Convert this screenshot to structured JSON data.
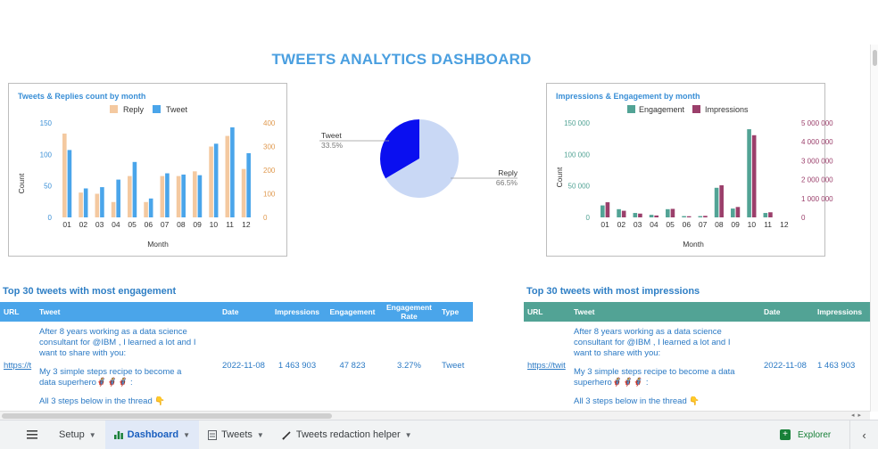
{
  "dashboard": {
    "title": "TWEETS ANALYTICS DASHBOARD"
  },
  "charts": {
    "replies": {
      "title": "Tweets & Replies count by month",
      "legend": [
        "Reply",
        "Tweet"
      ],
      "ylabel": "Count",
      "xlabel": "Month",
      "left_ticks": [
        "0",
        "50",
        "100",
        "150"
      ],
      "right_ticks": [
        "0",
        "100",
        "200",
        "300",
        "400"
      ]
    },
    "pie": {
      "labels": [
        "Tweet",
        "Reply"
      ],
      "percents": [
        "33.5%",
        "66.5%"
      ]
    },
    "impressions": {
      "title": "Impressions & Engagement by month",
      "legend": [
        "Engagement",
        "Impressions"
      ],
      "ylabel": "Count",
      "xlabel": "Month",
      "left_ticks": [
        "0",
        "50 000",
        "100 000",
        "150 000"
      ],
      "right_ticks": [
        "0",
        "1 000 000",
        "2 000 000",
        "3 000 000",
        "4 000 000",
        "5 000 000"
      ]
    }
  },
  "chart_data": [
    {
      "type": "bar",
      "title": "Tweets & Replies count by month",
      "xlabel": "Month",
      "ylabel": "Count",
      "categories": [
        "01",
        "02",
        "03",
        "04",
        "05",
        "06",
        "07",
        "08",
        "09",
        "10",
        "11",
        "12"
      ],
      "series": [
        {
          "name": "Reply",
          "axis": "right",
          "color": "#f4c9a0",
          "values": [
            355,
            105,
            100,
            65,
            175,
            65,
            175,
            175,
            195,
            300,
            345,
            205
          ]
        },
        {
          "name": "Tweet",
          "axis": "left",
          "color": "#4aa5ea",
          "values": [
            107,
            46,
            48,
            60,
            88,
            30,
            70,
            68,
            67,
            117,
            143,
            102
          ]
        }
      ],
      "ylim_left": [
        0,
        150
      ],
      "ylim_right": [
        0,
        400
      ],
      "legend": "top"
    },
    {
      "type": "pie",
      "categories": [
        "Tweet",
        "Reply"
      ],
      "values": [
        33.5,
        66.5
      ],
      "colors": [
        "#0a0ff0",
        "#c9d8f5"
      ]
    },
    {
      "type": "bar",
      "title": "Impressions & Engagement by month",
      "xlabel": "Month",
      "ylabel": "Count",
      "categories": [
        "01",
        "02",
        "03",
        "04",
        "05",
        "06",
        "07",
        "08",
        "09",
        "10",
        "11",
        "12"
      ],
      "series": [
        {
          "name": "Engagement",
          "axis": "left",
          "color": "#52a395",
          "values": [
            19000,
            13000,
            7000,
            4000,
            13000,
            2000,
            2000,
            47000,
            14000,
            140000,
            7000,
            0
          ]
        },
        {
          "name": "Impressions",
          "axis": "right",
          "color": "#9b3f6b",
          "values": [
            800000,
            350000,
            200000,
            100000,
            450000,
            60000,
            80000,
            1700000,
            550000,
            4350000,
            270000,
            0
          ]
        }
      ],
      "ylim_left": [
        0,
        150000
      ],
      "ylim_right": [
        0,
        5000000
      ],
      "legend": "top"
    }
  ],
  "tables": {
    "engagement": {
      "title": "Top 30 tweets with most engagement",
      "headers": [
        "URL",
        "Tweet",
        "Date",
        "Impressions",
        "Engagement",
        "Engagement Rate",
        "Type"
      ],
      "row": {
        "url": "https://t",
        "tweet_l1": "After 8 years working as a data science",
        "tweet_l2": "consultant for @IBM , I learned a lot and I",
        "tweet_l3": "want to share with you:",
        "tweet_l4": "My 3 simple steps recipe to become a",
        "tweet_l5": "data superhero🦸🦸🦸 :",
        "tweet_l6": "All 3 steps below in the thread 👇",
        "date": "2022-11-08",
        "impressions": "1 463 903",
        "engagement": "47 823",
        "rate": "3.27%",
        "type": "Tweet"
      }
    },
    "impressions": {
      "title": "Top 30 tweets with most impressions",
      "headers": [
        "URL",
        "Tweet",
        "Date",
        "Impressions"
      ],
      "row": {
        "url": "https://twit",
        "tweet_l1": "After 8 years working as a data science",
        "tweet_l2": "consultant for @IBM , I learned a lot and I",
        "tweet_l3": "want to share with you:",
        "tweet_l4": "My 3 simple steps recipe to become a data",
        "tweet_l5": "superhero🦸🦸🦸 :",
        "tweet_l6": "All 3 steps below in the thread 👇",
        "date": "2022-11-08",
        "impressions": "1 463 903"
      }
    }
  },
  "bottom_bar": {
    "menu_icon": "hamburger-icon",
    "tabs": [
      {
        "label": "Setup",
        "icon": ""
      },
      {
        "label": "Dashboard",
        "icon": "bar-chart-icon"
      },
      {
        "label": "Tweets",
        "icon": "sheet-icon"
      },
      {
        "label": "Tweets redaction helper",
        "icon": "pen-icon"
      }
    ],
    "explorer": "Explorer",
    "active_color": "#1a5fbf"
  }
}
